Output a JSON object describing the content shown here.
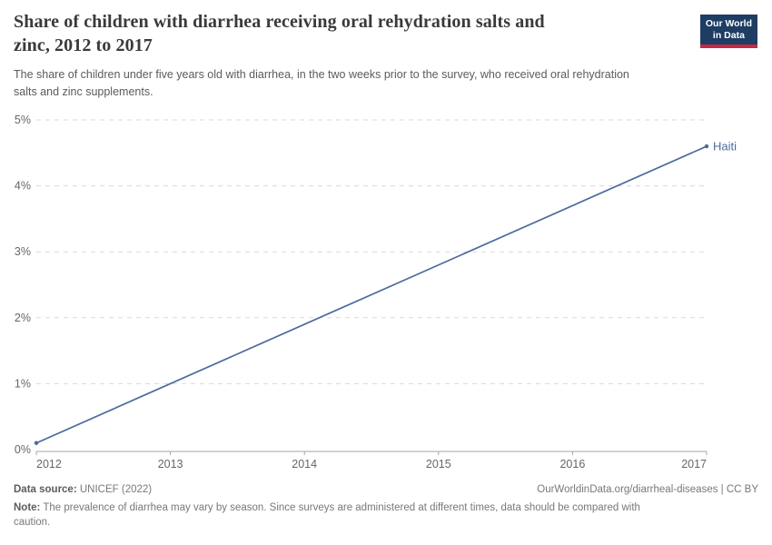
{
  "header": {
    "title_lines": [
      "Share of children with diarrhea receiving oral rehydration salts and",
      "zinc, 2012 to 2017"
    ],
    "subtitle_lines": [
      "The share of children under five years old with diarrhea, in the two weeks prior to the survey, who received oral rehydration",
      "salts and zinc supplements."
    ],
    "logo": {
      "line1": "Our World",
      "line2": "in Data",
      "bg_color": "#1d3d63",
      "underline_color": "#cb2740"
    }
  },
  "chart_data": {
    "type": "line",
    "title": "Share of children with diarrhea receiving oral rehydration salts and zinc, 2012 to 2017",
    "subtitle": "The share of children under five years old with diarrhea, in the two weeks prior to the survey, who received oral rehydration salts and zinc supplements.",
    "x": {
      "label": "",
      "range": [
        2012,
        2017
      ],
      "ticks": [
        2012,
        2013,
        2014,
        2015,
        2016,
        2017
      ]
    },
    "y": {
      "label": "",
      "suffix": "%",
      "range": [
        0,
        5
      ],
      "ticks": [
        0,
        1,
        2,
        3,
        4,
        5
      ]
    },
    "grid": "horizontal-dashed",
    "legend": "line-end-label",
    "series": [
      {
        "name": "Haiti",
        "color": "#4C6A9C",
        "points": [
          {
            "x": 2012,
            "y": 0.1
          },
          {
            "x": 2017,
            "y": 4.6
          }
        ]
      }
    ]
  },
  "footer": {
    "source_label": "Data source:",
    "source_value": "UNICEF (2022)",
    "link": "OurWorldinData.org/diarrheal-diseases | CC BY",
    "note_label": "Note:",
    "note_lines": [
      "The prevalence of diarrhea may vary by season. Since surveys are administered at different times, data should be compared with",
      "caution."
    ]
  },
  "colors": {
    "grid": "#d9d9d9",
    "axis": "#a5a5a5",
    "tick_label": "#666666",
    "series_line": "#4C6A9C",
    "title": "#3a3a3a",
    "subtitle": "#5b5b5b",
    "footer_text": "#787878"
  }
}
